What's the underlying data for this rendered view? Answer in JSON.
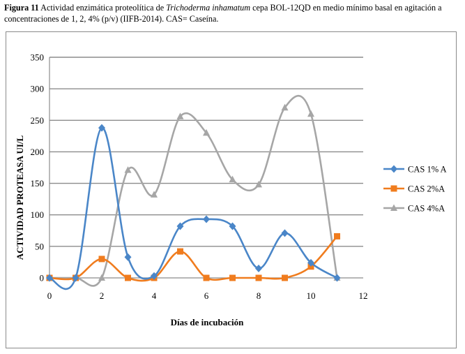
{
  "caption": {
    "label": "Figura 11",
    "text_before": "  Actividad enzimática proteolítica de ",
    "species": "Trichoderma inhamatum",
    "text_after": " cepa BOL-12QD  en medio mínimo basal en agitación a concentraciones de 1, 2, 4% (p/v) (IIFB-2014). CAS= Caseína."
  },
  "chart_data": {
    "type": "line",
    "smooth": true,
    "title": "",
    "xlabel": "Días de incubación",
    "ylabel": "ACTIVIDAD PROTEASA UI/L",
    "xlim": [
      0,
      12
    ],
    "ylim": [
      0,
      350
    ],
    "xticks": [
      0,
      2,
      4,
      6,
      8,
      10,
      12
    ],
    "yticks": [
      0,
      50,
      100,
      150,
      200,
      250,
      300,
      350
    ],
    "grid": "horizontal",
    "legend_position": "right",
    "x": [
      0,
      1,
      2,
      3,
      4,
      5,
      6,
      7,
      8,
      9,
      10,
      11
    ],
    "series": [
      {
        "name": "CAS 1% A",
        "color": "#4a86c8",
        "marker": "diamond",
        "values": [
          0,
          0,
          238,
          33,
          3,
          82,
          93,
          82,
          15,
          71,
          24,
          0
        ]
      },
      {
        "name": "CAS 2%A",
        "color": "#f07c1e",
        "marker": "square",
        "values": [
          0,
          0,
          30,
          0,
          0,
          42,
          0,
          0,
          0,
          0,
          18,
          66
        ]
      },
      {
        "name": "CAS 4%A",
        "color": "#a6a6a6",
        "marker": "triangle",
        "values": [
          0,
          0,
          0,
          171,
          132,
          256,
          230,
          156,
          148,
          270,
          260,
          0
        ]
      }
    ]
  }
}
